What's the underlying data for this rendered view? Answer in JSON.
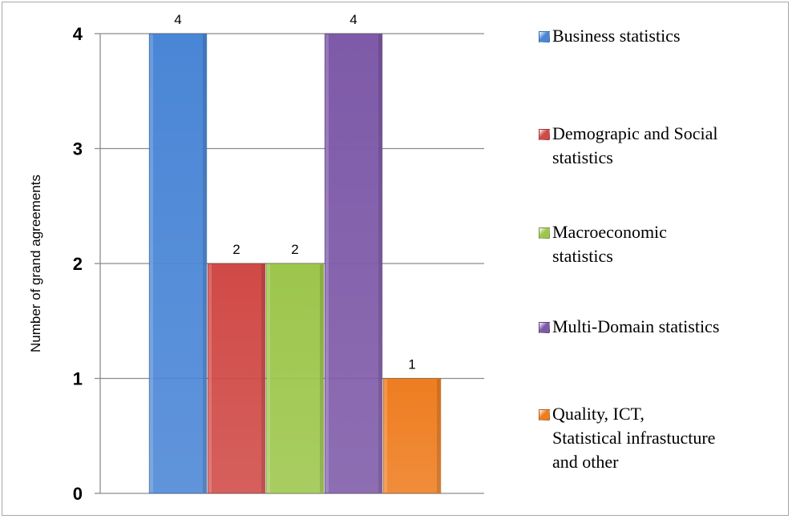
{
  "chart_data": {
    "type": "bar",
    "title": "",
    "xlabel": "",
    "ylabel": "Number of grand agreements",
    "ylim": [
      0,
      4
    ],
    "yticks": [
      "0",
      "1",
      "2",
      "3",
      "4"
    ],
    "grid": true,
    "legend_position": "right",
    "series": [
      {
        "name": "Business statistics",
        "value": 4,
        "label": "4",
        "color": "#4a86d6"
      },
      {
        "name": "Demograpic and Social statistics",
        "value": 2,
        "label": "2",
        "color": "#d04a47"
      },
      {
        "name": "Macroeconomic statistics",
        "value": 2,
        "label": "2",
        "color": "#9dc64c"
      },
      {
        "name": "Multi-Domain statistics",
        "value": 4,
        "label": "4",
        "color": "#7e5aa8"
      },
      {
        "name": "Quality, ICT, Statistical infrastucture and other",
        "value": 1,
        "label": "1",
        "color": "#ee7d20"
      }
    ]
  },
  "legend": {
    "items": [
      {
        "lines": [
          "Business statistics"
        ]
      },
      {
        "lines": [
          "Demograpic and Social",
          "statistics"
        ]
      },
      {
        "lines": [
          "Macroeconomic",
          "statistics"
        ]
      },
      {
        "lines": [
          "Multi-Domain statistics"
        ]
      },
      {
        "lines": [
          "Quality, ICT,",
          "Statistical infrastucture",
          "and other"
        ]
      }
    ]
  }
}
